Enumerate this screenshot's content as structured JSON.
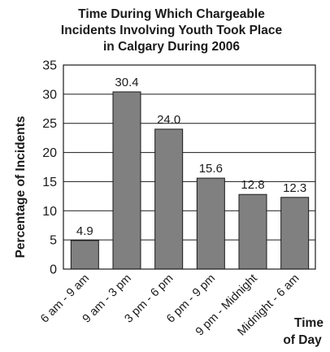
{
  "chart_data": {
    "type": "bar",
    "title_lines": [
      "Time During Which Chargeable",
      "Incidents Involving Youth Took Place",
      "in Calgary During 2006"
    ],
    "ylabel": "Percentage of Incidents",
    "xlabel_lines": [
      "Time",
      "of Day"
    ],
    "categories": [
      "6 am - 9 am",
      "9 am - 3 pm",
      "3 pm - 6 pm",
      "6 pm - 9 pm",
      "9 pm - Midnight",
      "Midnight - 6 am"
    ],
    "values": [
      4.9,
      30.4,
      24.0,
      15.6,
      12.8,
      12.3
    ],
    "data_labels": [
      "4.9",
      "30.4",
      "24.0",
      "15.6",
      "12.8",
      "12.3"
    ],
    "yticks": [
      "0",
      "5",
      "10",
      "15",
      "20",
      "25",
      "30",
      "35"
    ],
    "ylim": [
      0,
      35
    ],
    "grid": true,
    "bar_color": "#808080",
    "bar_stroke_color": "#1a1a1a",
    "grid_color": "#1a1a1a",
    "plot_background": "#ffffff"
  }
}
